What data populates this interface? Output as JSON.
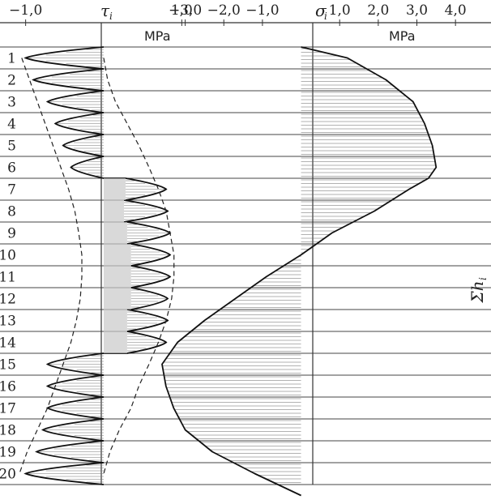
{
  "chart_data": [
    {
      "type": "line",
      "panel": "tau",
      "symbol": "τ",
      "symbol_sub": "i",
      "unit": "MPa",
      "x_tick_labels": [
        "−1,0",
        "1,0"
      ],
      "x_ticks": [
        -1.0,
        1.0
      ],
      "xlim": [
        -1.1,
        1.1
      ],
      "layers": [
        1,
        2,
        3,
        4,
        5,
        6,
        7,
        8,
        9,
        10,
        11,
        12,
        13,
        14,
        15,
        16,
        17,
        18,
        19,
        20
      ],
      "series": [
        {
          "values_min": [
            -1.0,
            -0.9,
            -0.72,
            -0.62,
            -0.52,
            -0.42,
            0.28,
            0.26,
            0.3,
            0.35,
            0.35,
            0.35,
            0.3,
            0.3,
            -0.72,
            -0.72,
            -0.72,
            -0.78,
            -0.86,
            -1.0
          ],
          "values_max": [
            0.0,
            0.0,
            0.0,
            0.0,
            0.0,
            0.0,
            0.8,
            0.82,
            0.85,
            0.85,
            0.85,
            0.82,
            0.82,
            0.8,
            0.0,
            0.0,
            0.0,
            0.0,
            0.0,
            0.0
          ]
        }
      ],
      "envelope": {
        "left": [
          -1.05,
          -0.95,
          -0.85,
          -0.75,
          -0.65,
          -0.55,
          -0.45,
          -0.37,
          -0.32,
          -0.28,
          -0.28,
          -0.3,
          -0.35,
          -0.42,
          -0.52,
          -0.62,
          -0.72,
          -0.85,
          -0.98,
          -1.08
        ],
        "right": [
          0.0,
          0.05,
          0.15,
          0.3,
          0.45,
          0.58,
          0.7,
          0.8,
          0.85,
          0.9,
          0.9,
          0.87,
          0.8,
          0.7,
          0.58,
          0.45,
          0.35,
          0.2,
          0.08,
          0.0
        ]
      }
    },
    {
      "type": "area",
      "panel": "sigma",
      "symbol": "σ",
      "symbol_sub": "i",
      "unit": "MPa",
      "x_tick_labels": [
        "−3,0",
        "−2,0",
        "−1,0",
        "1,0",
        "2,0",
        "3,0",
        "4,0"
      ],
      "x_ticks": [
        -3.0,
        -2.0,
        -1.0,
        1.0,
        2.0,
        3.0,
        4.0
      ],
      "xlim": [
        -3.6,
        4.5
      ],
      "layers": [
        1,
        2,
        3,
        4,
        5,
        6,
        7,
        8,
        9,
        10,
        11,
        12,
        13,
        14,
        15,
        16,
        17,
        18,
        19,
        20
      ],
      "series": [
        {
          "layer_position": [
            0.0,
            0.5,
            1.5,
            2.5,
            3.5,
            4.5,
            5.5,
            6.0,
            6.5,
            7.5,
            8.5,
            9.5,
            10.5,
            11.5,
            12.5,
            13.5,
            14.5,
            15.5,
            16.5,
            17.5,
            18.5,
            19.5,
            20.5
          ],
          "values": [
            0.0,
            1.2,
            2.2,
            2.9,
            3.2,
            3.4,
            3.5,
            3.3,
            2.8,
            1.9,
            0.8,
            0.0,
            -0.9,
            -1.7,
            -2.5,
            -3.2,
            -3.6,
            -3.5,
            -3.3,
            -3.0,
            -2.3,
            -1.2,
            0.0
          ]
        }
      ],
      "right_axis_label": "Σh",
      "right_axis_label_sub": "i"
    }
  ]
}
